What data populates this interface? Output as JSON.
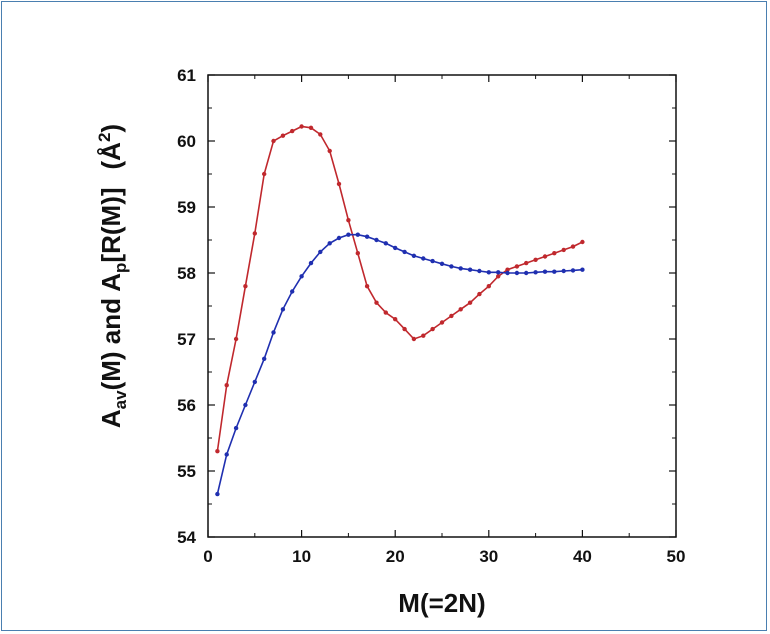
{
  "chart_data": {
    "type": "line",
    "xlabel": "M(=2N)",
    "ylabel": {
      "parts": [
        "A",
        "av",
        "(M) and A",
        "p",
        "[R(M)]",
        "(",
        "Å",
        "2",
        ")"
      ]
    },
    "xlim": [
      0,
      50
    ],
    "ylim": [
      54,
      61
    ],
    "x_ticks": [
      0,
      10,
      20,
      30,
      40,
      50
    ],
    "y_ticks": [
      54,
      55,
      56,
      57,
      58,
      59,
      60,
      61
    ],
    "grid": false,
    "series": [
      {
        "color": "#c0282d",
        "points": [
          [
            1,
            55.3
          ],
          [
            2,
            56.3
          ],
          [
            3,
            57.0
          ],
          [
            4,
            57.8
          ],
          [
            5,
            58.6
          ],
          [
            6,
            59.5
          ],
          [
            7,
            60.0
          ],
          [
            8,
            60.08
          ],
          [
            9,
            60.15
          ],
          [
            10,
            60.22
          ],
          [
            11,
            60.2
          ],
          [
            12,
            60.1
          ],
          [
            13,
            59.85
          ],
          [
            14,
            59.35
          ],
          [
            15,
            58.8
          ],
          [
            16,
            58.3
          ],
          [
            17,
            57.8
          ],
          [
            18,
            57.55
          ],
          [
            19,
            57.4
          ],
          [
            20,
            57.3
          ],
          [
            21,
            57.15
          ],
          [
            22,
            57.0
          ],
          [
            23,
            57.05
          ],
          [
            24,
            57.15
          ],
          [
            25,
            57.25
          ],
          [
            26,
            57.35
          ],
          [
            27,
            57.45
          ],
          [
            28,
            57.55
          ],
          [
            29,
            57.68
          ],
          [
            30,
            57.8
          ],
          [
            31,
            57.95
          ],
          [
            32,
            58.05
          ],
          [
            33,
            58.1
          ],
          [
            34,
            58.15
          ],
          [
            35,
            58.2
          ],
          [
            36,
            58.25
          ],
          [
            37,
            58.3
          ],
          [
            38,
            58.35
          ],
          [
            39,
            58.4
          ],
          [
            40,
            58.47
          ]
        ]
      },
      {
        "color": "#1f2fb0",
        "points": [
          [
            1,
            54.65
          ],
          [
            2,
            55.25
          ],
          [
            3,
            55.65
          ],
          [
            4,
            56.0
          ],
          [
            5,
            56.35
          ],
          [
            6,
            56.7
          ],
          [
            7,
            57.1
          ],
          [
            8,
            57.45
          ],
          [
            9,
            57.72
          ],
          [
            10,
            57.95
          ],
          [
            11,
            58.15
          ],
          [
            12,
            58.32
          ],
          [
            13,
            58.45
          ],
          [
            14,
            58.53
          ],
          [
            15,
            58.58
          ],
          [
            16,
            58.58
          ],
          [
            17,
            58.55
          ],
          [
            18,
            58.5
          ],
          [
            19,
            58.45
          ],
          [
            20,
            58.38
          ],
          [
            21,
            58.32
          ],
          [
            22,
            58.26
          ],
          [
            23,
            58.22
          ],
          [
            24,
            58.18
          ],
          [
            25,
            58.14
          ],
          [
            26,
            58.1
          ],
          [
            27,
            58.07
          ],
          [
            28,
            58.05
          ],
          [
            29,
            58.03
          ],
          [
            30,
            58.01
          ],
          [
            31,
            58.01
          ],
          [
            32,
            58.0
          ],
          [
            33,
            58.0
          ],
          [
            34,
            58.0
          ],
          [
            35,
            58.01
          ],
          [
            36,
            58.02
          ],
          [
            37,
            58.02
          ],
          [
            38,
            58.03
          ],
          [
            39,
            58.04
          ],
          [
            40,
            58.05
          ]
        ]
      }
    ]
  }
}
